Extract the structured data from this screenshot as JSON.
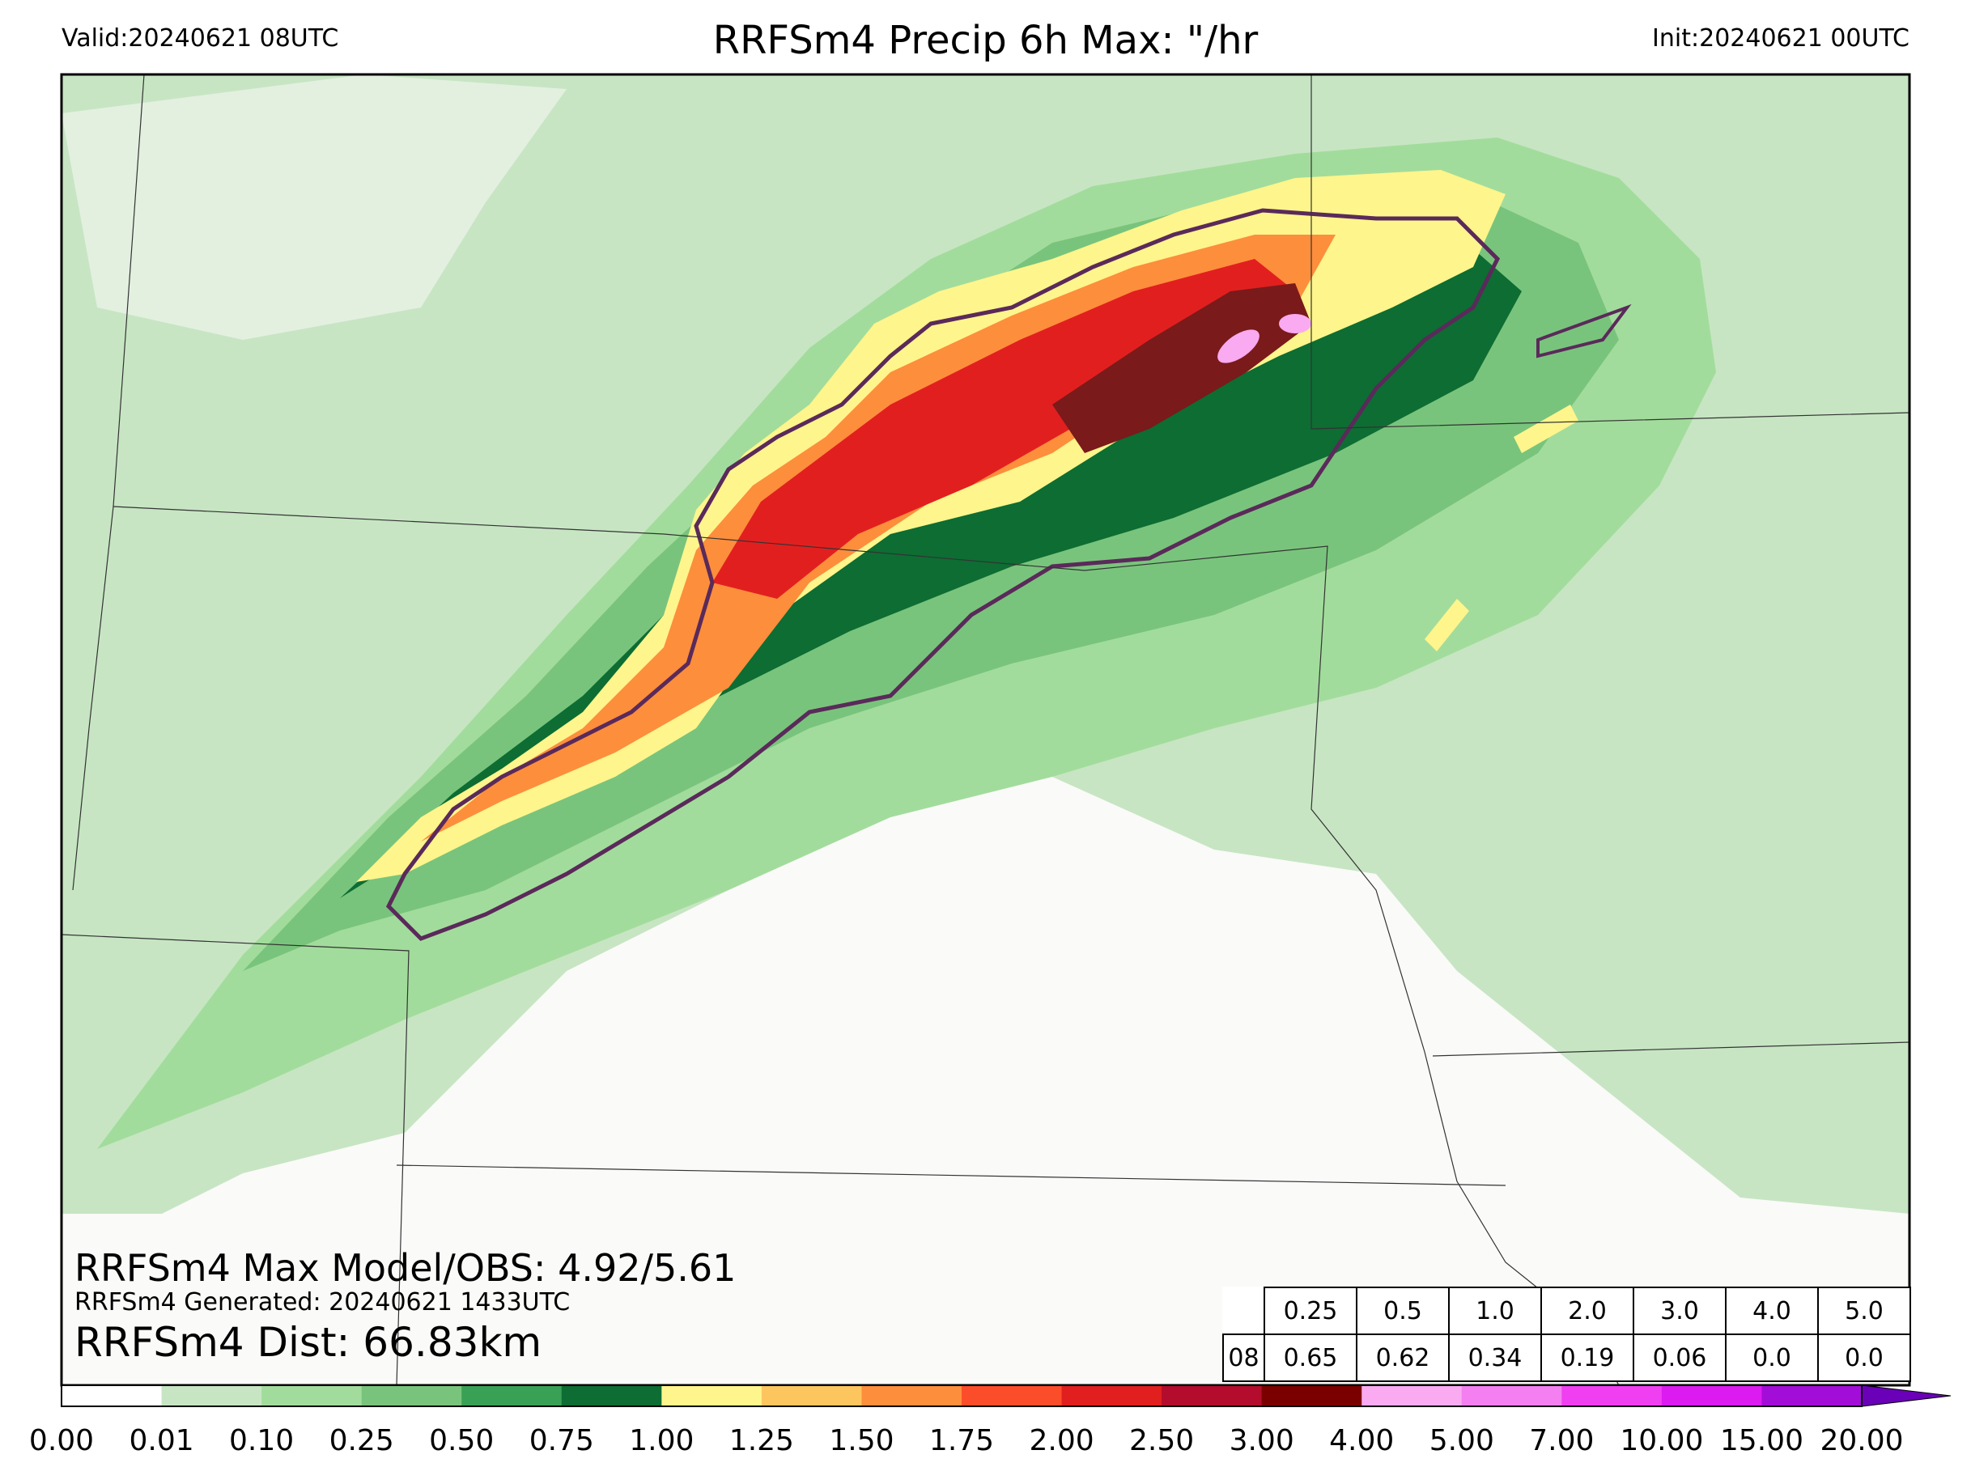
{
  "header": {
    "valid": "Valid:20240621 08UTC",
    "title": "RRFSm4 Precip 6h Max: \"/hr",
    "init": "Init:20240621 00UTC"
  },
  "info": {
    "max_model_obs": "RRFSm4 Max Model/OBS: 4.92/5.61",
    "generated": "RRFSm4 Generated: 20240621 1433UTC",
    "dist": "RRFSm4 Dist: 66.83km"
  },
  "table": {
    "thresholds": [
      "0.25",
      "0.5",
      "1.0",
      "2.0",
      "3.0",
      "4.0",
      "5.0"
    ],
    "row_label": "08",
    "values": [
      "0.65",
      "0.62",
      "0.34",
      "0.19",
      "0.06",
      "0.0",
      "0.0"
    ]
  },
  "colorbar": {
    "ticks": [
      "0.00",
      "0.01",
      "0.10",
      "0.25",
      "0.50",
      "0.75",
      "1.00",
      "1.25",
      "1.50",
      "1.75",
      "2.00",
      "2.50",
      "3.00",
      "4.00",
      "5.00",
      "7.00",
      "10.00",
      "15.00",
      "20.00"
    ],
    "colors": [
      "#ffffff",
      "#c7e5c3",
      "#a2dc9c",
      "#79c47c",
      "#39a155",
      "#0d6d33",
      "#fef58c",
      "#fdc55e",
      "#fd8e3c",
      "#fc4d2a",
      "#e21f1f",
      "#b30c2c",
      "#7a0000",
      "#f9aaf0",
      "#f37ff0",
      "#ef3ff0",
      "#db1bf0",
      "#a30dd8",
      "#6a00b8"
    ]
  },
  "map_colors": {
    "background": "#fafaf8",
    "light_green": "#c7e5c3",
    "green": "#a2dc9c",
    "mid_green": "#79c47c",
    "dark_green": "#0d6d33",
    "yellow": "#fef58c",
    "orange": "#fd8e3c",
    "red": "#e21f1f",
    "dark_red": "#7a1a1a",
    "pink": "#f9aaf0",
    "obs_contour": "#5a2a5a"
  }
}
